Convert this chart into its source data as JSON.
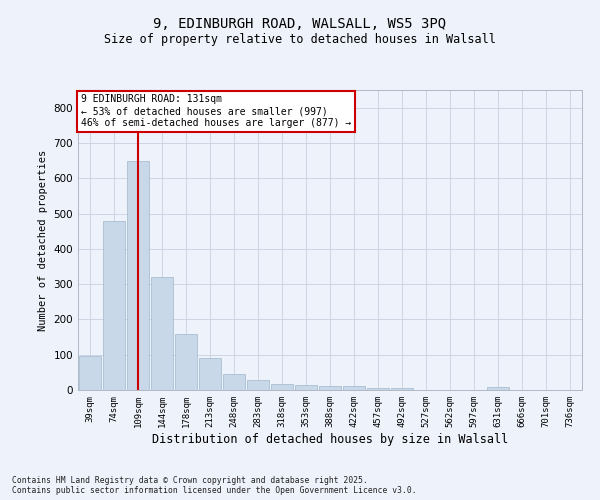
{
  "title_line1": "9, EDINBURGH ROAD, WALSALL, WS5 3PQ",
  "title_line2": "Size of property relative to detached houses in Walsall",
  "xlabel": "Distribution of detached houses by size in Walsall",
  "ylabel": "Number of detached properties",
  "categories": [
    "39sqm",
    "74sqm",
    "109sqm",
    "144sqm",
    "178sqm",
    "213sqm",
    "248sqm",
    "283sqm",
    "318sqm",
    "353sqm",
    "388sqm",
    "422sqm",
    "457sqm",
    "492sqm",
    "527sqm",
    "562sqm",
    "597sqm",
    "631sqm",
    "666sqm",
    "701sqm",
    "736sqm"
  ],
  "values": [
    95,
    478,
    648,
    320,
    158,
    92,
    46,
    28,
    18,
    15,
    12,
    10,
    6,
    5,
    0,
    0,
    0,
    8,
    0,
    0,
    0
  ],
  "bar_color": "#c8d8e8",
  "bar_edge_color": "#a0b8cc",
  "vline_x": 2,
  "vline_color": "#cc0000",
  "annotation_text": "9 EDINBURGH ROAD: 131sqm\n← 53% of detached houses are smaller (997)\n46% of semi-detached houses are larger (877) →",
  "annotation_box_color": "#ffffff",
  "annotation_box_edge": "#cc0000",
  "background_color": "#eef2fa",
  "grid_color": "#c8d0e0",
  "ylim": [
    0,
    850
  ],
  "yticks": [
    0,
    100,
    200,
    300,
    400,
    500,
    600,
    700,
    800
  ],
  "footnote_line1": "Contains HM Land Registry data © Crown copyright and database right 2025.",
  "footnote_line2": "Contains public sector information licensed under the Open Government Licence v3.0."
}
